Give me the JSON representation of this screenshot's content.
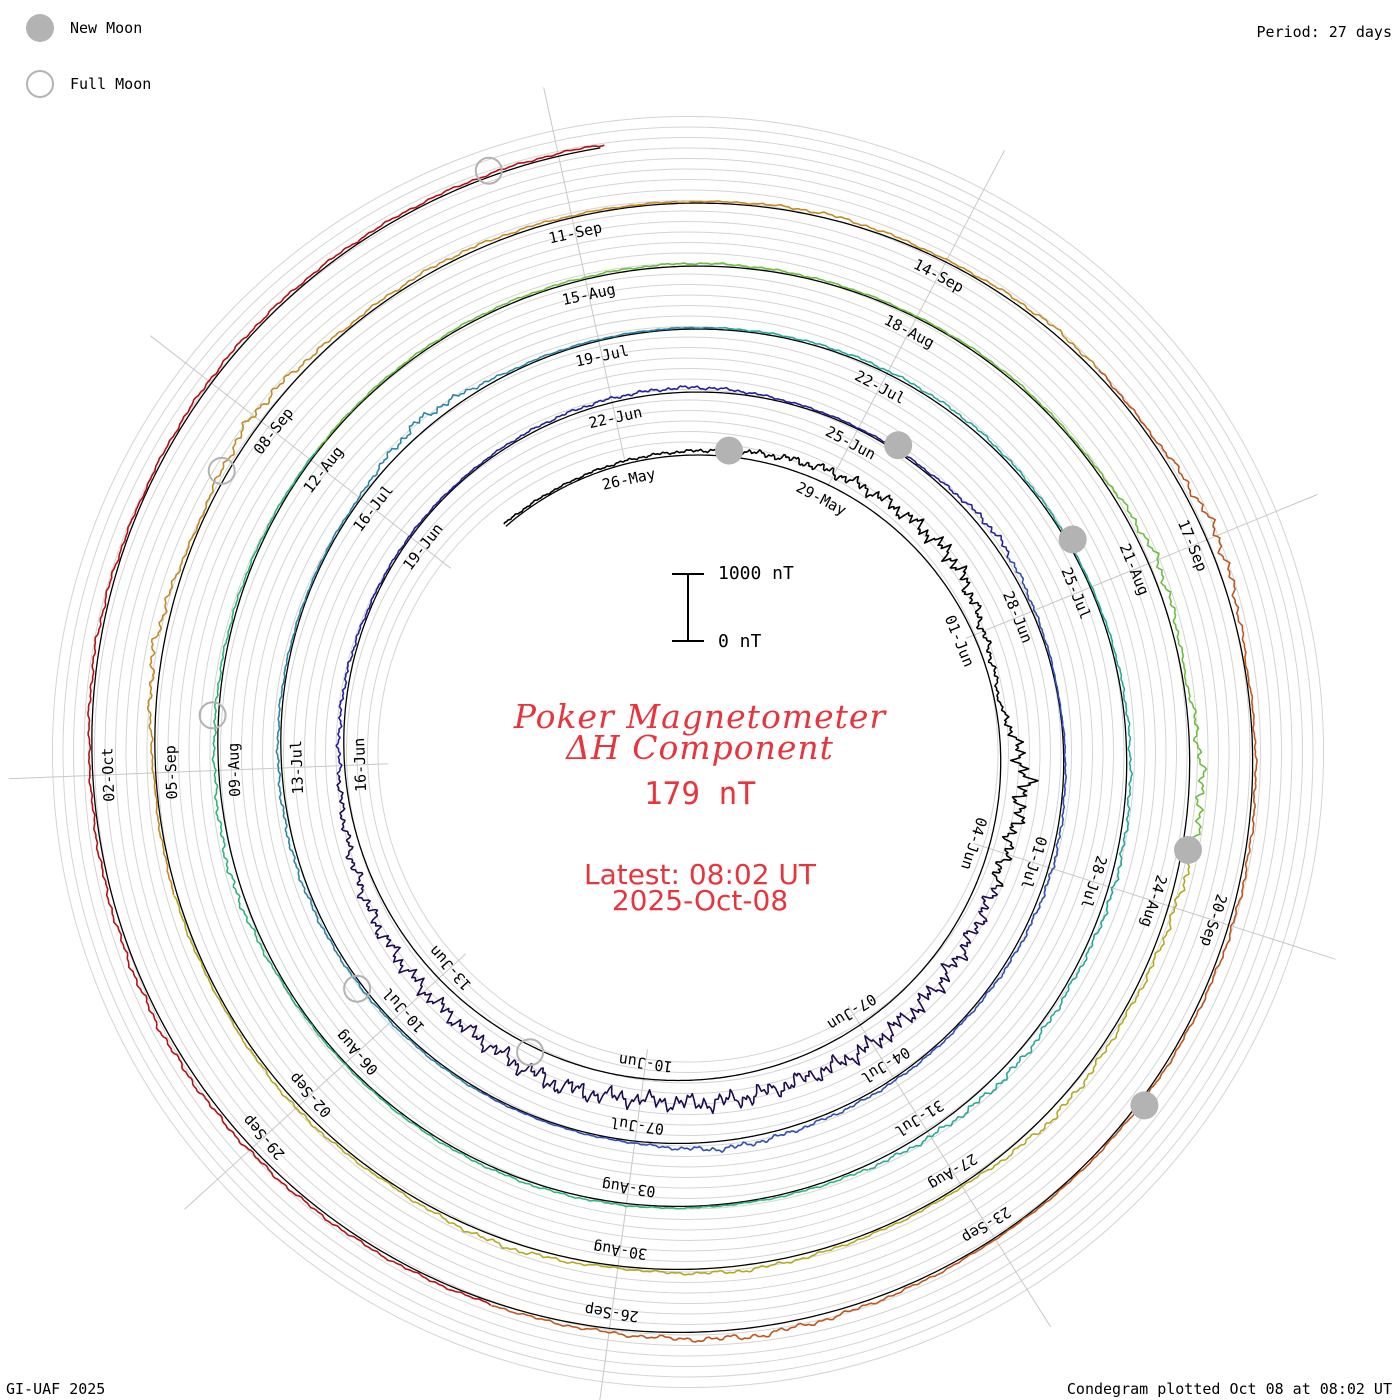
{
  "header": {
    "legend": [
      {
        "kind": "new",
        "label": "New Moon"
      },
      {
        "kind": "full",
        "label": "Full Moon"
      }
    ],
    "period": "Period: 27 days"
  },
  "footer": {
    "credit": "GI-UAF 2025",
    "plotted": "Condegram plotted Oct 08 at 08:02 UT"
  },
  "center": {
    "title_line1": "Poker Magnetometer",
    "title_line2": "ΔH Component",
    "current_value": "179 nT",
    "latest_time": "Latest: 08:02 UT",
    "latest_date": "2025-Oct-08"
  },
  "scale_bar": {
    "top_label": "1000 nT",
    "bottom_label": "0 nT"
  },
  "chart_data": {
    "type": "line",
    "subtype": "condegram-spiral",
    "period_days": 27,
    "start_date": "2025-05-24",
    "end_datetime": "2025-10-08T08:02",
    "y_unit": "nT",
    "scale_bar_nT": [
      0,
      1000
    ],
    "date_labels": [
      "26-May",
      "29-May",
      "01-Jun",
      "04-Jun",
      "07-Jun",
      "10-Jun",
      "13-Jun",
      "16-Jun",
      "19-Jun",
      "22-Jun",
      "25-Jun",
      "28-Jun",
      "01-Jul",
      "04-Jul",
      "07-Jul",
      "10-Jul",
      "13-Jul",
      "16-Jul",
      "19-Jul",
      "22-Jul",
      "25-Jul",
      "28-Jul",
      "31-Jul",
      "03-Aug",
      "06-Aug",
      "09-Aug",
      "12-Aug",
      "15-Aug",
      "18-Aug",
      "21-Aug",
      "24-Aug",
      "27-Aug",
      "30-Aug",
      "02-Sep",
      "05-Sep",
      "08-Sep",
      "11-Sep",
      "14-Sep",
      "17-Sep",
      "20-Sep",
      "23-Sep",
      "26-Sep",
      "29-Sep",
      "02-Oct"
    ],
    "new_moons": [
      "2025-05-27",
      "2025-06-25",
      "2025-07-24",
      "2025-08-23",
      "2025-09-21"
    ],
    "full_moons": [
      "2025-06-11",
      "2025-07-10",
      "2025-08-09",
      "2025-09-07",
      "2025-10-07"
    ],
    "series_colors": [
      "#000000",
      "#1e0a52",
      "#22229a",
      "#2f50b4",
      "#2d86a8",
      "#26a99c",
      "#2eb67a",
      "#6abf3c",
      "#b7a820",
      "#c58a22",
      "#c0561c",
      "#b80f10"
    ],
    "daily_dH_nT": [
      40,
      30,
      45,
      60,
      120,
      200,
      250,
      320,
      150,
      60,
      380,
      260,
      280,
      330,
      340,
      320,
      360,
      310,
      380,
      300,
      280,
      250,
      160,
      80,
      60,
      30,
      25,
      20,
      40,
      60,
      70,
      30,
      20,
      30,
      120,
      40,
      10,
      30,
      60,
      50,
      30,
      40,
      60,
      120,
      30,
      20,
      25,
      30,
      40,
      60,
      50,
      30,
      20,
      30,
      160,
      30,
      20,
      20,
      30,
      40,
      50,
      30,
      20,
      40,
      60,
      80,
      60,
      120,
      90,
      40,
      20,
      30,
      40,
      30,
      20,
      30,
      100,
      60,
      40,
      30,
      20,
      25,
      30,
      30,
      40,
      30,
      20,
      30,
      25,
      140,
      40,
      200,
      100,
      60,
      120,
      30,
      40,
      80,
      30,
      100,
      30,
      60,
      30,
      40,
      30,
      140,
      30,
      160,
      40,
      60,
      30,
      20,
      60,
      30,
      70,
      40,
      170,
      30,
      50,
      60,
      40,
      30,
      20,
      60,
      130,
      60,
      40,
      50,
      60,
      80,
      60,
      40,
      60,
      30,
      50,
      40
    ]
  }
}
